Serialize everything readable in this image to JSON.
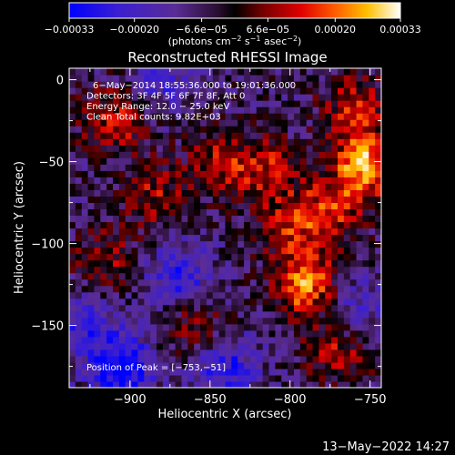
{
  "chart_data": {
    "type": "heatmap",
    "title": "Reconstructed RHESSI Image",
    "xlabel": "Heliocentric X (arcsec)",
    "ylabel": "Heliocentric Y (arcsec)",
    "xlim": [
      -938,
      -743
    ],
    "ylim": [
      -188,
      7
    ],
    "x_ticks": [
      -900,
      -850,
      -800,
      -750
    ],
    "x_tick_labels": [
      "−900",
      "−850",
      "−800",
      "−750"
    ],
    "y_ticks": [
      0,
      -50,
      -100,
      -150
    ],
    "y_tick_labels": [
      "0",
      "−50",
      "−100",
      "−150"
    ],
    "colorbar": {
      "range": [
        -0.00033,
        0.00033
      ],
      "tick_values": [
        -0.00033,
        -0.0002,
        -6.6e-05,
        6.6e-05,
        0.0002,
        0.00033
      ],
      "tick_labels": [
        "−0.00033",
        "−0.00020",
        "−6.6e−05",
        "6.6e−05",
        "0.00020",
        "0.00033"
      ],
      "units_label": "(photons cm",
      "units_exp1": "−2",
      "units_mid": " s",
      "units_exp2": "−1",
      "units_end": " asec",
      "units_exp3": "−2",
      "units_close": ")",
      "colormap": "blue-purple-black-red-orange-yellow-white"
    },
    "annotations": [
      "6−May−2014 18:55:36.000 to 19:01:36.000",
      "Detectors: 3F 4F 5F 6F 7F 8F, Att 0",
      "Energy Range: 12.0 − 25.0 keV",
      "Clean    Total counts: 9.82E+03"
    ],
    "peak_label": "Position of Peak = [−753,−51]",
    "peak": {
      "x": -753,
      "y": -51
    },
    "bright_regions": [
      {
        "x": -910,
        "y": -25,
        "level": 0.55
      },
      {
        "x": -885,
        "y": -70,
        "level": 0.45
      },
      {
        "x": -845,
        "y": -50,
        "level": 0.45
      },
      {
        "x": -815,
        "y": -55,
        "level": 0.55
      },
      {
        "x": -800,
        "y": -90,
        "level": 0.45
      },
      {
        "x": -790,
        "y": -125,
        "level": 0.85
      },
      {
        "x": -775,
        "y": -80,
        "level": 0.6
      },
      {
        "x": -753,
        "y": -51,
        "level": 1.0
      },
      {
        "x": -760,
        "y": -15,
        "level": 0.5
      },
      {
        "x": -770,
        "y": -165,
        "level": 0.5
      },
      {
        "x": -915,
        "y": -110,
        "level": 0.4
      },
      {
        "x": -860,
        "y": -150,
        "level": 0.4
      }
    ],
    "dark_regions": [
      {
        "x": -905,
        "y": -175,
        "level": -0.85
      },
      {
        "x": -870,
        "y": -120,
        "level": -0.6
      },
      {
        "x": -930,
        "y": -150,
        "level": -0.5
      },
      {
        "x": -880,
        "y": 0,
        "level": -0.4
      },
      {
        "x": -840,
        "y": -175,
        "level": -0.6
      },
      {
        "x": -760,
        "y": -140,
        "level": -0.4
      }
    ]
  },
  "timestamp": "13−May−2022 14:27"
}
